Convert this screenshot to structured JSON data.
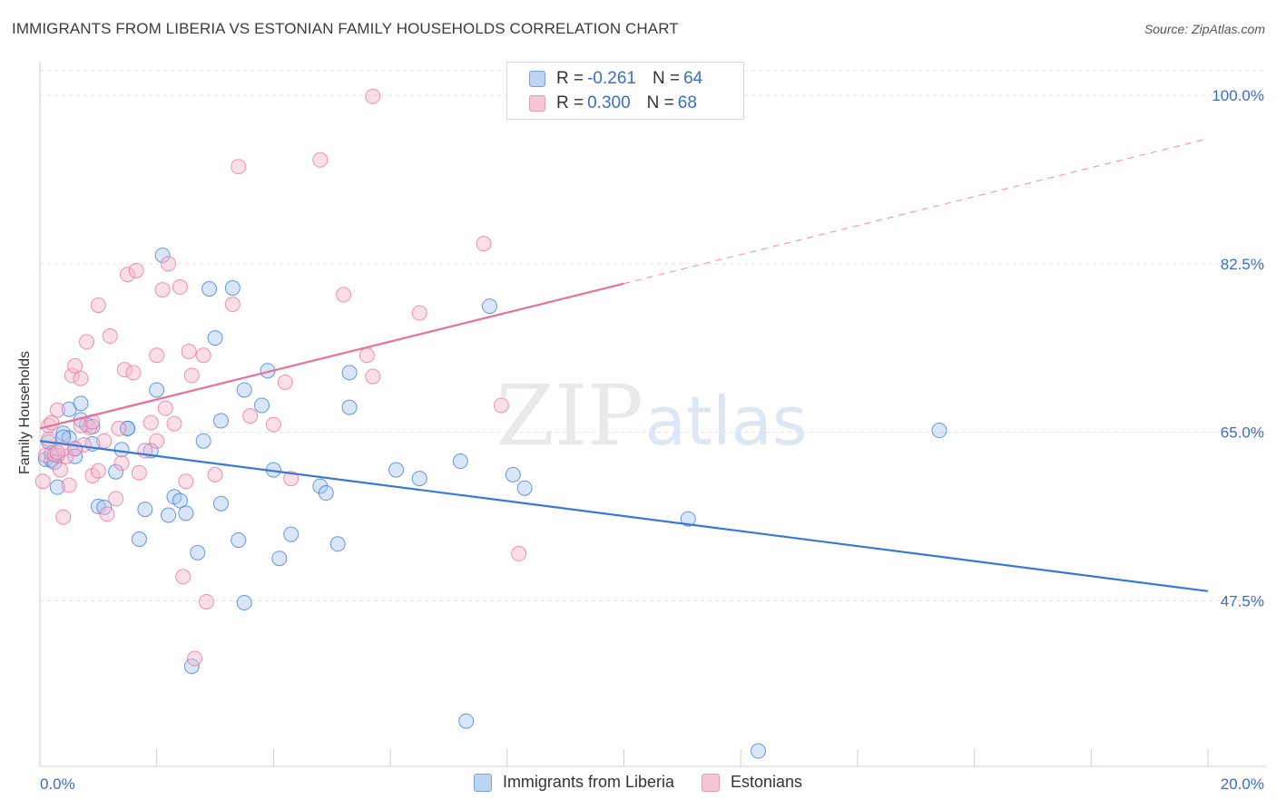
{
  "header": {
    "title": "IMMIGRANTS FROM LIBERIA VS ESTONIAN FAMILY HOUSEHOLDS CORRELATION CHART",
    "source": "Source: ZipAtlas.com"
  },
  "watermark": {
    "zip": "ZIP",
    "atlas": "atlas"
  },
  "legend": {
    "rows": [
      {
        "r_label": "R = ",
        "r_value": "-0.261",
        "n_label": "N = ",
        "n_value": "64"
      },
      {
        "r_label": "R = ",
        "r_value": "0.300",
        "n_label": "N = ",
        "n_value": "68"
      }
    ]
  },
  "colors": {
    "blue": "#3a78d4",
    "pink": "#e8709a",
    "blue_fill": "#a9c8f0",
    "pink_fill": "#f6b8cb"
  },
  "chart_data": {
    "type": "scatter",
    "title": "IMMIGRANTS FROM LIBERIA VS ESTONIAN FAMILY HOUSEHOLDS CORRELATION CHART",
    "xlabel": "",
    "ylabel": "Family Households",
    "xlim": [
      0,
      20
    ],
    "ylim": [
      30.3,
      103.5
    ],
    "x_tick_labels": [
      "0.0%",
      "20.0%"
    ],
    "y_ticks": [
      47.5,
      65.0,
      82.5,
      100.0
    ],
    "y_tick_labels": [
      "47.5%",
      "65.0%",
      "82.5%",
      "100.0%"
    ],
    "grid": true,
    "legend_position": "top-center",
    "series": [
      {
        "name": "Immigrants from Liberia",
        "color": "#3a78d4",
        "trend": {
          "x0": 0,
          "y0": 64.1,
          "x1": 20,
          "y1": 48.5,
          "dashed_from": null
        },
        "points": [
          [
            0.1,
            62.2
          ],
          [
            0.2,
            62.1
          ],
          [
            0.2,
            62.8
          ],
          [
            0.3,
            62.6
          ],
          [
            0.4,
            64.9
          ],
          [
            0.5,
            67.4
          ],
          [
            0.6,
            63.3
          ],
          [
            0.7,
            68.0
          ],
          [
            0.8,
            65.8
          ],
          [
            0.9,
            63.8
          ],
          [
            1.0,
            57.3
          ],
          [
            1.1,
            57.2
          ],
          [
            1.3,
            60.9
          ],
          [
            1.4,
            63.2
          ],
          [
            1.5,
            65.4
          ],
          [
            1.7,
            53.9
          ],
          [
            1.8,
            57.0
          ],
          [
            1.9,
            63.1
          ],
          [
            2.0,
            69.4
          ],
          [
            2.1,
            83.4
          ],
          [
            2.2,
            56.4
          ],
          [
            2.3,
            58.3
          ],
          [
            2.4,
            57.9
          ],
          [
            2.5,
            56.6
          ],
          [
            2.6,
            40.7
          ],
          [
            2.7,
            52.5
          ],
          [
            2.8,
            64.1
          ],
          [
            2.9,
            79.9
          ],
          [
            3.0,
            74.8
          ],
          [
            3.1,
            66.2
          ],
          [
            3.1,
            57.6
          ],
          [
            3.3,
            80.0
          ],
          [
            3.4,
            53.8
          ],
          [
            3.5,
            69.4
          ],
          [
            3.5,
            47.3
          ],
          [
            3.8,
            67.8
          ],
          [
            3.9,
            71.4
          ],
          [
            4.0,
            61.1
          ],
          [
            4.1,
            51.9
          ],
          [
            4.3,
            54.4
          ],
          [
            4.8,
            59.4
          ],
          [
            4.9,
            58.7
          ],
          [
            5.1,
            53.4
          ],
          [
            5.3,
            71.2
          ],
          [
            5.3,
            67.6
          ],
          [
            6.1,
            61.1
          ],
          [
            6.5,
            60.2
          ],
          [
            7.2,
            62.0
          ],
          [
            7.3,
            35.0
          ],
          [
            7.7,
            78.1
          ],
          [
            8.1,
            60.6
          ],
          [
            8.3,
            59.2
          ],
          [
            11.1,
            56.0
          ],
          [
            12.3,
            31.9
          ],
          [
            15.4,
            65.2
          ],
          [
            0.3,
            59.3
          ],
          [
            0.6,
            62.5
          ],
          [
            0.9,
            65.6
          ],
          [
            1.5,
            65.4
          ],
          [
            0.7,
            66.3
          ],
          [
            0.5,
            64.4
          ],
          [
            0.25,
            61.9
          ],
          [
            0.15,
            64.0
          ],
          [
            0.4,
            64.5
          ]
        ]
      },
      {
        "name": "Estonians",
        "color": "#e8709a",
        "trend": {
          "x0": 0,
          "y0": 65.4,
          "x1": 20,
          "y1": 95.5,
          "dashed_from": 10
        },
        "points": [
          [
            0.05,
            59.9
          ],
          [
            0.1,
            62.6
          ],
          [
            0.15,
            65.7
          ],
          [
            0.2,
            66.0
          ],
          [
            0.3,
            67.3
          ],
          [
            0.35,
            61.1
          ],
          [
            0.4,
            56.2
          ],
          [
            0.45,
            62.5
          ],
          [
            0.5,
            59.5
          ],
          [
            0.55,
            70.9
          ],
          [
            0.6,
            71.9
          ],
          [
            0.7,
            70.6
          ],
          [
            0.75,
            63.7
          ],
          [
            0.8,
            74.4
          ],
          [
            0.85,
            65.5
          ],
          [
            0.9,
            60.5
          ],
          [
            1.0,
            78.2
          ],
          [
            1.1,
            64.1
          ],
          [
            1.15,
            56.5
          ],
          [
            1.2,
            75.0
          ],
          [
            1.3,
            58.1
          ],
          [
            1.35,
            65.4
          ],
          [
            1.4,
            61.8
          ],
          [
            1.45,
            71.5
          ],
          [
            1.5,
            81.4
          ],
          [
            1.6,
            71.2
          ],
          [
            1.65,
            81.8
          ],
          [
            1.7,
            60.8
          ],
          [
            1.8,
            63.1
          ],
          [
            1.9,
            66.0
          ],
          [
            2.0,
            64.1
          ],
          [
            2.0,
            73.0
          ],
          [
            2.1,
            79.8
          ],
          [
            2.15,
            67.5
          ],
          [
            2.2,
            82.5
          ],
          [
            2.3,
            65.9
          ],
          [
            2.4,
            80.1
          ],
          [
            2.45,
            50.0
          ],
          [
            2.5,
            59.9
          ],
          [
            2.55,
            73.4
          ],
          [
            2.6,
            70.9
          ],
          [
            2.65,
            41.5
          ],
          [
            2.8,
            73.0
          ],
          [
            2.85,
            47.4
          ],
          [
            3.0,
            60.6
          ],
          [
            3.3,
            78.3
          ],
          [
            3.4,
            92.6
          ],
          [
            3.6,
            66.7
          ],
          [
            4.0,
            65.8
          ],
          [
            4.2,
            70.2
          ],
          [
            4.3,
            60.2
          ],
          [
            4.8,
            93.3
          ],
          [
            5.2,
            79.3
          ],
          [
            5.6,
            73.0
          ],
          [
            5.7,
            70.8
          ],
          [
            6.5,
            77.4
          ],
          [
            7.6,
            84.6
          ],
          [
            7.9,
            67.8
          ],
          [
            8.2,
            52.4
          ],
          [
            5.7,
            99.9
          ],
          [
            0.25,
            62.7
          ],
          [
            0.4,
            63.3
          ],
          [
            0.6,
            63.3
          ],
          [
            0.7,
            65.7
          ],
          [
            0.9,
            66.1
          ],
          [
            1.0,
            61.0
          ],
          [
            0.3,
            62.9
          ],
          [
            0.15,
            64.3
          ]
        ]
      }
    ]
  },
  "bottom_legend": [
    {
      "label": "Immigrants from Liberia"
    },
    {
      "label": "Estonians"
    }
  ]
}
